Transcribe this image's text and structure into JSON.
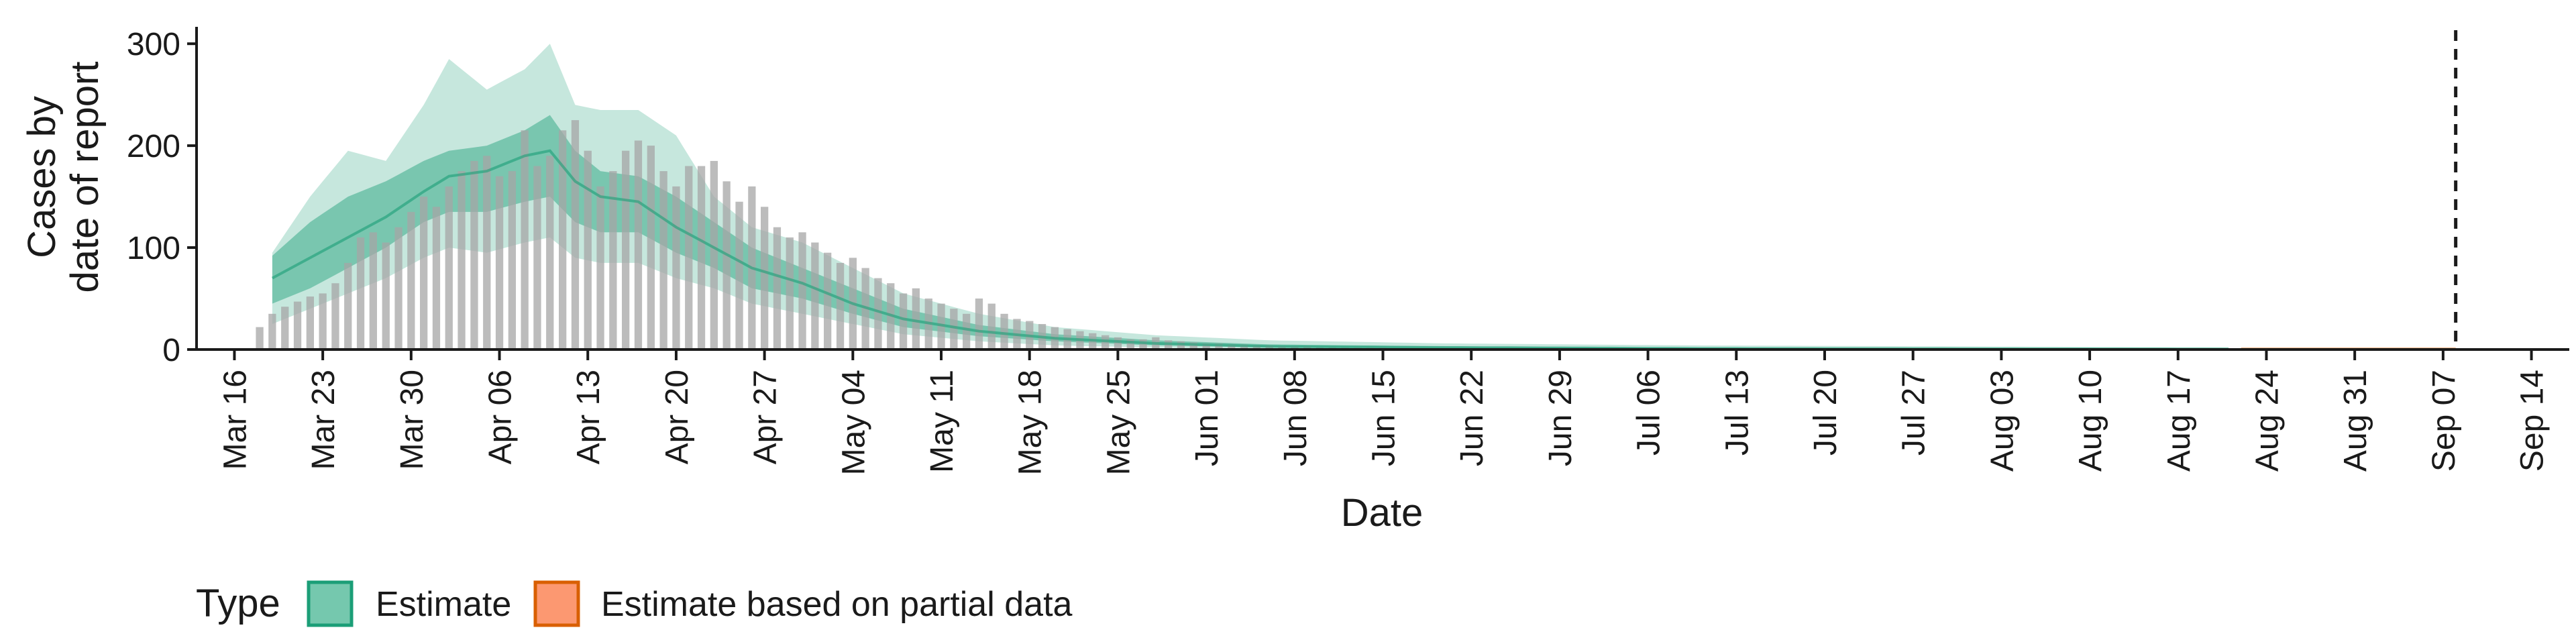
{
  "chart_data": {
    "type": "area",
    "title": "",
    "xlabel": "Date",
    "ylabel_lines": [
      "Cases by",
      "date of report"
    ],
    "ylim": [
      0,
      310
    ],
    "yticks": [
      0,
      100,
      200,
      300
    ],
    "x_start": "2020-03-13",
    "x_end": "2020-09-17",
    "xticks": [
      {
        "date": "2020-03-16",
        "label": "Mar 16"
      },
      {
        "date": "2020-03-23",
        "label": "Mar 23"
      },
      {
        "date": "2020-03-30",
        "label": "Mar 30"
      },
      {
        "date": "2020-04-06",
        "label": "Apr 06"
      },
      {
        "date": "2020-04-13",
        "label": "Apr 13"
      },
      {
        "date": "2020-04-20",
        "label": "Apr 20"
      },
      {
        "date": "2020-04-27",
        "label": "Apr 27"
      },
      {
        "date": "2020-05-04",
        "label": "May 04"
      },
      {
        "date": "2020-05-11",
        "label": "May 11"
      },
      {
        "date": "2020-05-18",
        "label": "May 18"
      },
      {
        "date": "2020-05-25",
        "label": "May 25"
      },
      {
        "date": "2020-06-01",
        "label": "Jun 01"
      },
      {
        "date": "2020-06-08",
        "label": "Jun 08"
      },
      {
        "date": "2020-06-15",
        "label": "Jun 15"
      },
      {
        "date": "2020-06-22",
        "label": "Jun 22"
      },
      {
        "date": "2020-06-29",
        "label": "Jun 29"
      },
      {
        "date": "2020-07-06",
        "label": "Jul 06"
      },
      {
        "date": "2020-07-13",
        "label": "Jul 13"
      },
      {
        "date": "2020-07-20",
        "label": "Jul 20"
      },
      {
        "date": "2020-07-27",
        "label": "Jul 27"
      },
      {
        "date": "2020-08-03",
        "label": "Aug 03"
      },
      {
        "date": "2020-08-10",
        "label": "Aug 10"
      },
      {
        "date": "2020-08-17",
        "label": "Aug 17"
      },
      {
        "date": "2020-08-24",
        "label": "Aug 24"
      },
      {
        "date": "2020-08-31",
        "label": "Aug 31"
      },
      {
        "date": "2020-09-07",
        "label": "Sep 07"
      },
      {
        "date": "2020-09-14",
        "label": "Sep 14"
      }
    ],
    "reference_line_date": "2020-09-08",
    "observed_cases": {
      "start": "2020-03-18",
      "values": [
        22,
        35,
        42,
        47,
        52,
        55,
        65,
        85,
        110,
        115,
        105,
        120,
        135,
        150,
        140,
        160,
        175,
        185,
        190,
        170,
        175,
        215,
        180,
        190,
        215,
        225,
        195,
        160,
        175,
        195,
        205,
        200,
        175,
        160,
        180,
        180,
        185,
        165,
        145,
        160,
        140,
        120,
        110,
        115,
        105,
        95,
        85,
        90,
        80,
        70,
        65,
        55,
        60,
        50,
        45,
        40,
        35,
        50,
        45,
        35,
        30,
        28,
        25,
        22,
        20,
        18,
        16,
        14,
        12,
        10,
        10,
        12,
        9,
        8,
        7,
        6,
        6,
        5,
        5,
        4,
        4,
        3,
        3,
        3,
        2,
        2,
        2,
        2,
        2,
        2,
        1,
        1,
        1,
        1,
        1,
        1,
        1,
        1,
        1,
        1,
        1,
        1,
        1,
        1,
        1,
        1,
        1,
        1,
        1,
        1,
        1,
        1,
        1,
        1,
        1,
        1,
        1,
        1,
        1,
        1,
        1,
        1,
        1,
        1,
        1,
        1,
        1,
        1,
        1,
        1,
        1,
        1,
        1,
        1,
        1,
        1,
        1,
        1,
        1,
        1,
        1,
        1,
        1,
        1,
        1,
        1,
        1,
        1,
        1,
        1,
        1,
        1,
        1,
        1,
        1,
        1
      ]
    },
    "estimate_series": {
      "name": "Estimate",
      "start": "2020-03-19",
      "end": "2020-08-21",
      "knots": [
        {
          "date": "2020-03-19",
          "median": 70,
          "lo50": 45,
          "hi50": 92,
          "lo90": 25,
          "hi90": 95
        },
        {
          "date": "2020-03-22",
          "median": 90,
          "lo50": 60,
          "hi50": 125,
          "lo90": 40,
          "hi90": 150
        },
        {
          "date": "2020-03-25",
          "median": 110,
          "lo50": 80,
          "hi50": 150,
          "lo90": 55,
          "hi90": 195
        },
        {
          "date": "2020-03-28",
          "median": 130,
          "lo50": 100,
          "hi50": 165,
          "lo90": 70,
          "hi90": 185
        },
        {
          "date": "2020-03-31",
          "median": 155,
          "lo50": 125,
          "hi50": 185,
          "lo90": 90,
          "hi90": 240
        },
        {
          "date": "2020-04-02",
          "median": 170,
          "lo50": 135,
          "hi50": 195,
          "lo90": 100,
          "hi90": 285
        },
        {
          "date": "2020-04-05",
          "median": 175,
          "lo50": 135,
          "hi50": 200,
          "lo90": 95,
          "hi90": 255
        },
        {
          "date": "2020-04-08",
          "median": 190,
          "lo50": 145,
          "hi50": 215,
          "lo90": 105,
          "hi90": 275
        },
        {
          "date": "2020-04-10",
          "median": 195,
          "lo50": 150,
          "hi50": 230,
          "lo90": 110,
          "hi90": 300
        },
        {
          "date": "2020-04-12",
          "median": 165,
          "lo50": 125,
          "hi50": 195,
          "lo90": 90,
          "hi90": 240
        },
        {
          "date": "2020-04-14",
          "median": 150,
          "lo50": 115,
          "hi50": 175,
          "lo90": 85,
          "hi90": 235
        },
        {
          "date": "2020-04-17",
          "median": 145,
          "lo50": 115,
          "hi50": 170,
          "lo90": 85,
          "hi90": 235
        },
        {
          "date": "2020-04-20",
          "median": 120,
          "lo50": 95,
          "hi50": 150,
          "lo90": 70,
          "hi90": 210
        },
        {
          "date": "2020-04-23",
          "median": 100,
          "lo50": 80,
          "hi50": 125,
          "lo90": 60,
          "hi90": 150
        },
        {
          "date": "2020-04-26",
          "median": 80,
          "lo50": 60,
          "hi50": 100,
          "lo90": 45,
          "hi90": 120
        },
        {
          "date": "2020-04-30",
          "median": 65,
          "lo50": 50,
          "hi50": 80,
          "lo90": 35,
          "hi90": 105
        },
        {
          "date": "2020-05-04",
          "median": 45,
          "lo50": 35,
          "hi50": 60,
          "lo90": 25,
          "hi90": 80
        },
        {
          "date": "2020-05-08",
          "median": 30,
          "lo50": 22,
          "hi50": 40,
          "lo90": 15,
          "hi90": 55
        },
        {
          "date": "2020-05-14",
          "median": 18,
          "lo50": 13,
          "hi50": 24,
          "lo90": 8,
          "hi90": 35
        },
        {
          "date": "2020-05-20",
          "median": 11,
          "lo50": 8,
          "hi50": 15,
          "lo90": 4,
          "hi90": 22
        },
        {
          "date": "2020-05-28",
          "median": 6,
          "lo50": 4,
          "hi50": 9,
          "lo90": 2,
          "hi90": 14
        },
        {
          "date": "2020-06-06",
          "median": 3,
          "lo50": 2,
          "hi50": 5,
          "lo90": 0,
          "hi90": 9
        },
        {
          "date": "2020-06-20",
          "median": 2,
          "lo50": 1,
          "hi50": 3,
          "lo90": 0,
          "hi90": 6
        },
        {
          "date": "2020-07-10",
          "median": 1,
          "lo50": 0.5,
          "hi50": 2,
          "lo90": 0,
          "hi90": 4
        },
        {
          "date": "2020-08-21",
          "median": 0.5,
          "lo50": 0.2,
          "hi50": 1,
          "lo90": 0,
          "hi90": 2
        }
      ]
    },
    "partial_series": {
      "name": "Estimate based on partial data",
      "start": "2020-08-22",
      "end": "2020-09-08",
      "knots": [
        {
          "date": "2020-08-22",
          "median": 0.5,
          "lo50": 0.2,
          "hi50": 1,
          "lo90": 0,
          "hi90": 1.5
        },
        {
          "date": "2020-09-08",
          "median": 0.5,
          "lo50": 0.2,
          "hi50": 1,
          "lo90": 0,
          "hi90": 1.5
        }
      ]
    },
    "legend": {
      "title": "Type",
      "placement": "bottom-left",
      "entries": [
        {
          "label": "Estimate",
          "fill": "#66c2a5",
          "border": "#1b9e77"
        },
        {
          "label": "Estimate based on partial data",
          "fill": "#fc8d62",
          "border": "#d95f02"
        }
      ]
    },
    "colors": {
      "estimate": "#1b9e77",
      "partial": "#d95f02",
      "observed_bar": "#a6a6a6",
      "axis": "#1a1a1a"
    }
  }
}
